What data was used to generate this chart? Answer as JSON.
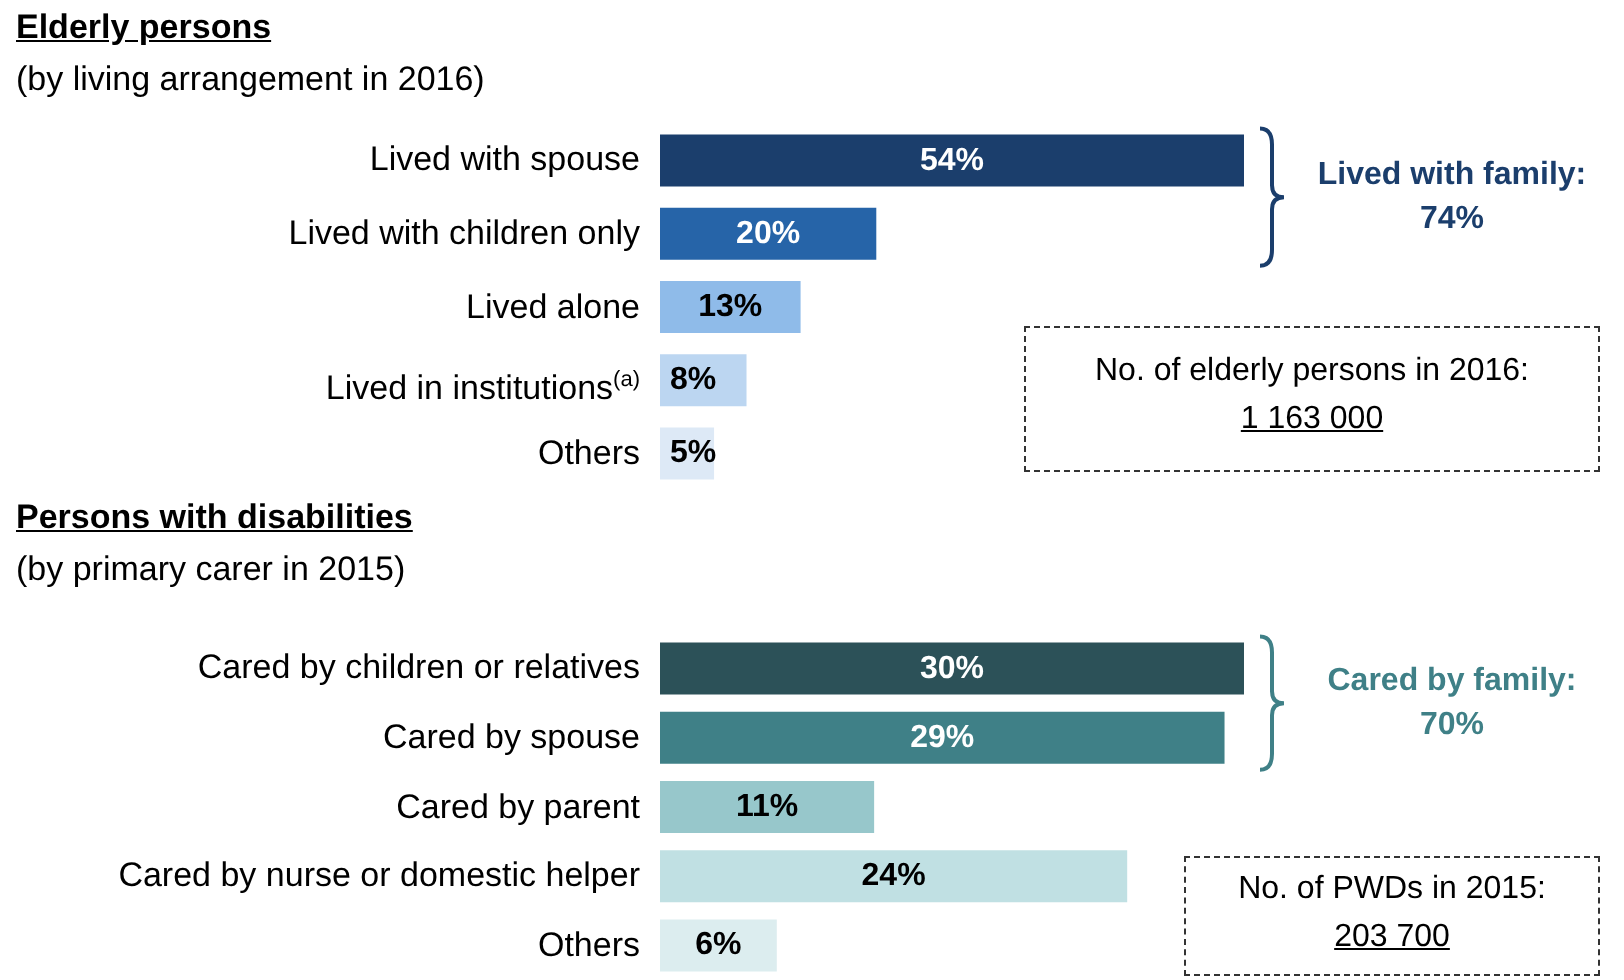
{
  "chart_data": [
    {
      "type": "bar",
      "orientation": "horizontal",
      "title": "Elderly persons",
      "subtitle": "(by living arrangement in 2016)",
      "categories": [
        "Lived with spouse",
        "Lived with children only",
        "Lived alone",
        "Lived in institutions$^{(a)}$",
        "Others"
      ],
      "values": [
        54,
        20,
        13,
        8,
        5
      ],
      "colors": [
        "#1b3e6c",
        "#2664a8",
        "#8fbbe9",
        "#bcd6f1",
        "#dde9f6"
      ],
      "value_labels": [
        "54%",
        "20%",
        "13%",
        "8%",
        "5%"
      ],
      "annotations": [
        "Lived with family: 74%",
        "No. of elderly persons in 2016:",
        "1 163 000"
      ]
    },
    {
      "type": "bar",
      "orientation": "horizontal",
      "title": "Persons with disabilities",
      "subtitle": "(by primary carer in 2015)",
      "categories": [
        "Cared by children or relatives",
        "Cared by  spouse",
        "Cared by parent",
        "Cared by nurse or domestic helper",
        "Others"
      ],
      "values": [
        30,
        29,
        11,
        24,
        6
      ],
      "colors": [
        "#2c5158",
        "#3f8087",
        "#97c7cb",
        "#c0e0e3",
        "#dcedef"
      ],
      "value_labels": [
        "30%",
        "29%",
        "11%",
        "24%",
        "6%"
      ],
      "annotations": [
        "Cared by family: 70%",
        "No. of PWDs in 2015:",
        "203 700"
      ]
    }
  ]
}
